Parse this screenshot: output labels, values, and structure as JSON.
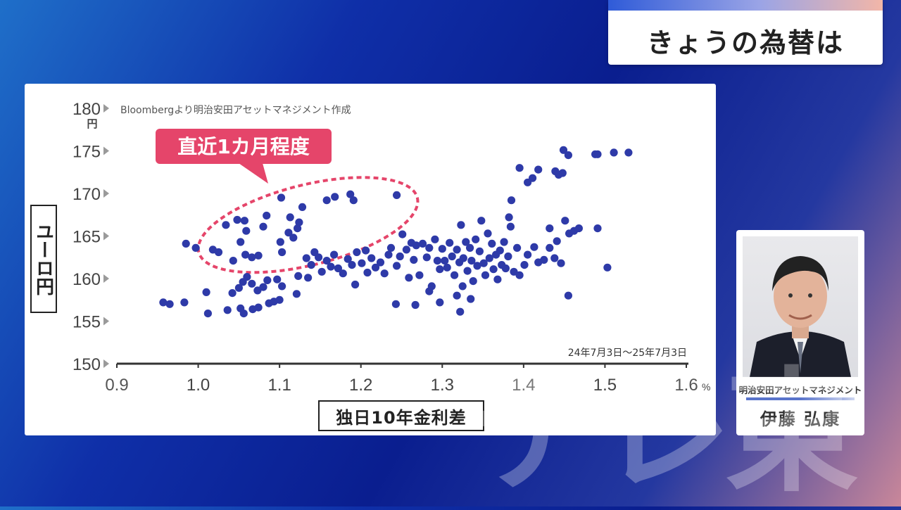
{
  "header": {
    "title": "きょうの為替は"
  },
  "watermark": "テレ東",
  "guest": {
    "organization": "明治安田アセットマネジメント",
    "name": "伊藤 弘康"
  },
  "colors": {
    "dot": "#2e3aa8",
    "callout": "#e5456a",
    "axis": "#333333",
    "strip": "#2f5bd8"
  },
  "chart_data": {
    "type": "scatter",
    "source": "Bloombergより明治安田アセットマネジメント作成",
    "period": "24年7月3日〜25年7月3日",
    "annotation": "直近1カ月程度",
    "xlabel": "独日10年金利差",
    "ylabel": "ユーロ円",
    "ylabel_unit": "円",
    "xlabel_unit": "%",
    "xlim": [
      0.9,
      1.6
    ],
    "ylim": [
      150,
      180
    ],
    "x_ticks": [
      "0.9",
      "1.0",
      "1.1",
      "1.2",
      "1.3",
      "1.4",
      "1.5",
      "1.6"
    ],
    "y_ticks": [
      "150",
      "155",
      "160",
      "165",
      "170",
      "175",
      "180"
    ],
    "grid": false,
    "points": [
      [
        0.957,
        157.2
      ],
      [
        0.983,
        157.2
      ],
      [
        0.965,
        157.0
      ],
      [
        1.01,
        158.4
      ],
      [
        1.012,
        155.9
      ],
      [
        1.036,
        156.3
      ],
      [
        1.052,
        156.5
      ],
      [
        1.056,
        155.9
      ],
      [
        1.067,
        156.4
      ],
      [
        1.074,
        156.6
      ],
      [
        1.087,
        157.1
      ],
      [
        1.093,
        157.3
      ],
      [
        1.1,
        157.5
      ],
      [
        1.042,
        158.3
      ],
      [
        1.05,
        158.9
      ],
      [
        1.055,
        159.6
      ],
      [
        1.06,
        160.2
      ],
      [
        1.066,
        159.4
      ],
      [
        1.073,
        158.6
      ],
      [
        1.08,
        159.0
      ],
      [
        1.085,
        159.8
      ],
      [
        1.097,
        159.9
      ],
      [
        1.103,
        159.1
      ],
      [
        1.121,
        158.2
      ],
      [
        1.123,
        160.3
      ],
      [
        1.135,
        160.1
      ],
      [
        0.985,
        164.1
      ],
      [
        0.997,
        163.6
      ],
      [
        1.018,
        163.4
      ],
      [
        1.025,
        163.1
      ],
      [
        1.043,
        162.1
      ],
      [
        1.052,
        164.3
      ],
      [
        1.058,
        162.8
      ],
      [
        1.066,
        162.5
      ],
      [
        1.074,
        162.7
      ],
      [
        1.034,
        166.3
      ],
      [
        1.048,
        166.9
      ],
      [
        1.057,
        166.8
      ],
      [
        1.059,
        165.6
      ],
      [
        1.08,
        166.1
      ],
      [
        1.084,
        167.4
      ],
      [
        1.101,
        164.3
      ],
      [
        1.103,
        163.1
      ],
      [
        1.111,
        165.4
      ],
      [
        1.113,
        167.2
      ],
      [
        1.117,
        164.8
      ],
      [
        1.122,
        165.9
      ],
      [
        1.124,
        166.6
      ],
      [
        1.128,
        168.4
      ],
      [
        1.102,
        169.5
      ],
      [
        1.158,
        169.2
      ],
      [
        1.168,
        169.6
      ],
      [
        1.187,
        169.9
      ],
      [
        1.191,
        169.2
      ],
      [
        1.244,
        169.8
      ],
      [
        1.133,
        162.4
      ],
      [
        1.139,
        161.6
      ],
      [
        1.143,
        163.1
      ],
      [
        1.148,
        162.5
      ],
      [
        1.152,
        160.8
      ],
      [
        1.158,
        162.1
      ],
      [
        1.163,
        161.4
      ],
      [
        1.167,
        162.8
      ],
      [
        1.172,
        161.2
      ],
      [
        1.178,
        160.6
      ],
      [
        1.184,
        162.3
      ],
      [
        1.189,
        161.6
      ],
      [
        1.193,
        159.3
      ],
      [
        1.195,
        163.1
      ],
      [
        1.201,
        161.8
      ],
      [
        1.206,
        163.3
      ],
      [
        1.208,
        160.7
      ],
      [
        1.213,
        162.4
      ],
      [
        1.218,
        161.3
      ],
      [
        1.224,
        161.9
      ],
      [
        1.229,
        160.6
      ],
      [
        1.234,
        162.8
      ],
      [
        1.237,
        163.6
      ],
      [
        1.244,
        161.5
      ],
      [
        1.248,
        162.6
      ],
      [
        1.251,
        165.2
      ],
      [
        1.256,
        163.4
      ],
      [
        1.259,
        160.1
      ],
      [
        1.262,
        164.2
      ],
      [
        1.265,
        162.2
      ],
      [
        1.268,
        163.9
      ],
      [
        1.272,
        160.4
      ],
      [
        1.276,
        164.1
      ],
      [
        1.281,
        162.5
      ],
      [
        1.284,
        163.6
      ],
      [
        1.287,
        159.1
      ],
      [
        1.291,
        164.6
      ],
      [
        1.294,
        162.1
      ],
      [
        1.297,
        161.1
      ],
      [
        1.243,
        157.0
      ],
      [
        1.267,
        156.9
      ],
      [
        1.284,
        158.5
      ],
      [
        1.297,
        157.2
      ],
      [
        1.318,
        158.0
      ],
      [
        1.322,
        156.1
      ],
      [
        1.325,
        159.1
      ],
      [
        1.335,
        157.6
      ],
      [
        1.3,
        163.5
      ],
      [
        1.303,
        162.1
      ],
      [
        1.306,
        161.3
      ],
      [
        1.309,
        164.2
      ],
      [
        1.312,
        162.6
      ],
      [
        1.315,
        160.4
      ],
      [
        1.318,
        163.4
      ],
      [
        1.321,
        161.9
      ],
      [
        1.323,
        166.3
      ],
      [
        1.326,
        162.4
      ],
      [
        1.329,
        164.3
      ],
      [
        1.331,
        160.9
      ],
      [
        1.334,
        163.6
      ],
      [
        1.336,
        162.1
      ],
      [
        1.338,
        159.7
      ],
      [
        1.341,
        164.6
      ],
      [
        1.343,
        161.5
      ],
      [
        1.346,
        163.2
      ],
      [
        1.348,
        166.8
      ],
      [
        1.351,
        161.8
      ],
      [
        1.353,
        160.4
      ],
      [
        1.356,
        165.3
      ],
      [
        1.358,
        162.4
      ],
      [
        1.361,
        164.1
      ],
      [
        1.363,
        161.1
      ],
      [
        1.366,
        162.8
      ],
      [
        1.368,
        159.9
      ],
      [
        1.371,
        163.3
      ],
      [
        1.373,
        161.6
      ],
      [
        1.376,
        164.3
      ],
      [
        1.378,
        161.2
      ],
      [
        1.381,
        162.6
      ],
      [
        1.384,
        166.1
      ],
      [
        1.388,
        160.8
      ],
      [
        1.392,
        163.6
      ],
      [
        1.395,
        160.4
      ],
      [
        1.401,
        161.6
      ],
      [
        1.405,
        162.8
      ],
      [
        1.413,
        163.7
      ],
      [
        1.418,
        161.9
      ],
      [
        1.425,
        162.2
      ],
      [
        1.432,
        163.6
      ],
      [
        1.438,
        162.4
      ],
      [
        1.441,
        164.4
      ],
      [
        1.446,
        161.8
      ],
      [
        1.382,
        167.2
      ],
      [
        1.385,
        169.2
      ],
      [
        1.395,
        173.0
      ],
      [
        1.405,
        171.3
      ],
      [
        1.411,
        171.8
      ],
      [
        1.418,
        172.8
      ],
      [
        1.432,
        165.9
      ],
      [
        1.439,
        172.6
      ],
      [
        1.443,
        172.2
      ],
      [
        1.451,
        166.8
      ],
      [
        1.456,
        165.3
      ],
      [
        1.462,
        165.6
      ],
      [
        1.468,
        165.9
      ],
      [
        1.448,
        172.4
      ],
      [
        1.449,
        175.1
      ],
      [
        1.455,
        174.5
      ],
      [
        1.488,
        174.6
      ],
      [
        1.491,
        174.6
      ],
      [
        1.511,
        174.8
      ],
      [
        1.529,
        174.8
      ],
      [
        1.491,
        165.9
      ],
      [
        1.503,
        161.3
      ],
      [
        1.455,
        158.0
      ]
    ]
  }
}
